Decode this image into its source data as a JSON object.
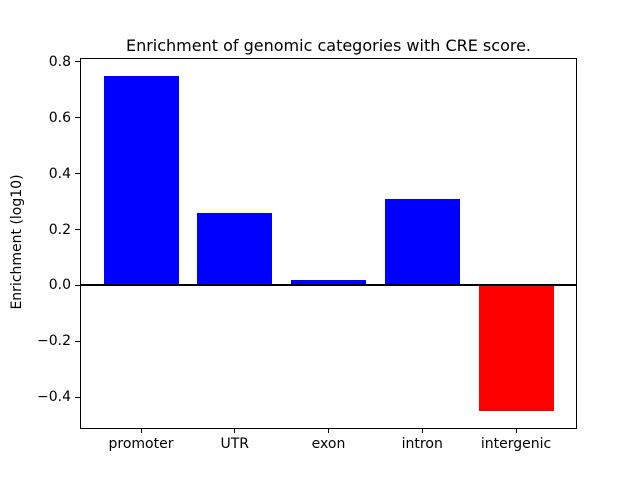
{
  "chart_data": {
    "type": "bar",
    "title": "Enrichment of genomic categories with CRE score.",
    "xlabel": "",
    "ylabel": "Enrichment (log10)",
    "categories": [
      "promoter",
      "UTR",
      "exon",
      "intron",
      "intergenic"
    ],
    "values": [
      0.75,
      0.26,
      0.02,
      0.31,
      -0.45
    ],
    "bar_colors": [
      "#0000ff",
      "#0000ff",
      "#0000ff",
      "#0000ff",
      "#ff0000"
    ],
    "ytick_labels": [
      "0.8",
      "0.6",
      "0.4",
      "0.2",
      "0.0",
      "−0.2",
      "−0.4"
    ],
    "ylim": [
      -0.51,
      0.81
    ],
    "xlim": [
      -0.64,
      4.64
    ],
    "bar_width": 0.8,
    "zero_line": true,
    "grid": false,
    "legend_position": "none",
    "axis_color": "#000000",
    "background_color": "#ffffff"
  }
}
